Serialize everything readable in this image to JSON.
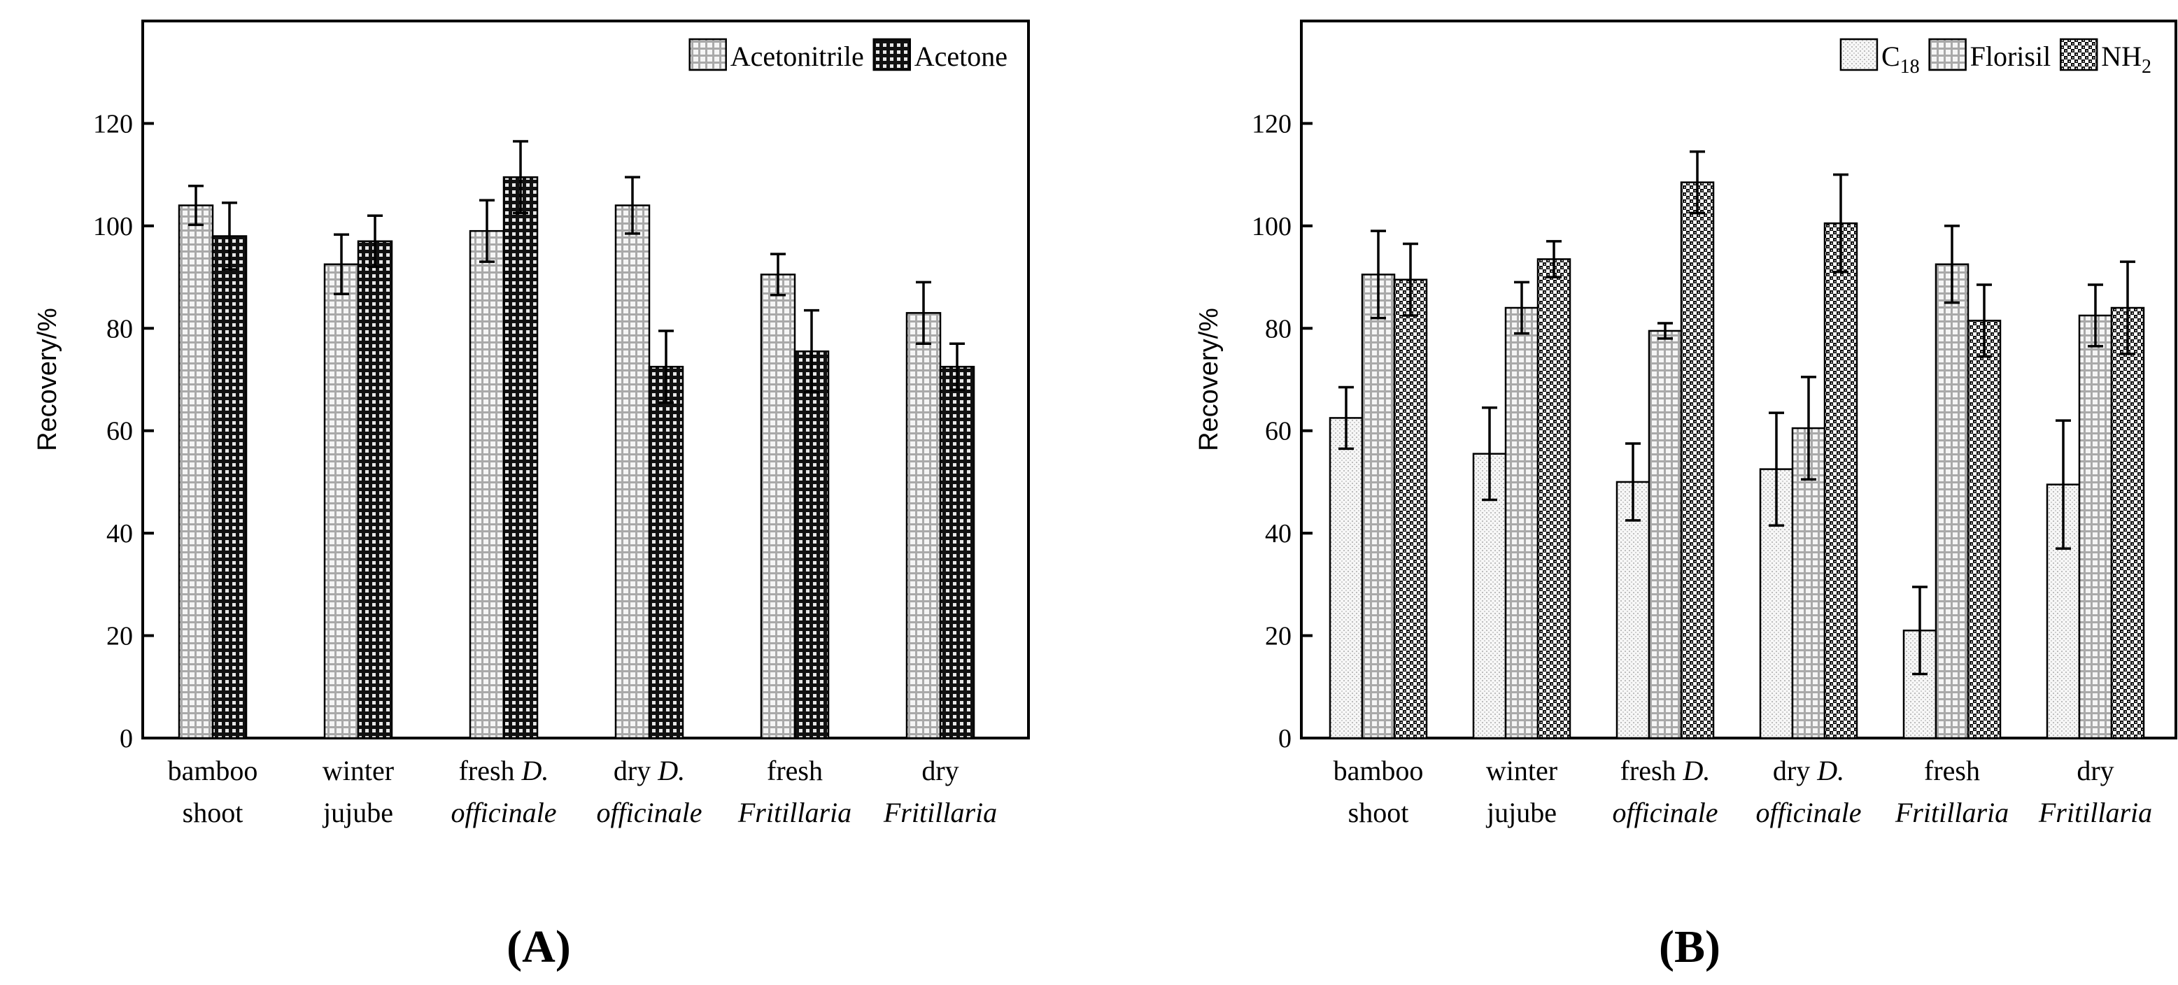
{
  "figure": {
    "panel_labels": [
      "A",
      "B"
    ]
  },
  "chart_data": [
    {
      "type": "bar",
      "panel": "A",
      "panel_label": "A",
      "xlabel": "",
      "ylabel": "Recovery/%",
      "ylim": [
        0,
        140
      ],
      "yticks": [
        0,
        20,
        40,
        60,
        80,
        100,
        120
      ],
      "grid": false,
      "legend_position": "top-right",
      "categories": [
        {
          "lines": [
            [
              {
                "text": "bamboo",
                "italic": false
              }
            ],
            [
              {
                "text": "shoot",
                "italic": false
              }
            ]
          ]
        },
        {
          "lines": [
            [
              {
                "text": "winter",
                "italic": false
              }
            ],
            [
              {
                "text": "jujube",
                "italic": false
              }
            ]
          ]
        },
        {
          "lines": [
            [
              {
                "text": "fresh  ",
                "italic": false
              },
              {
                "text": "D.",
                "italic": true
              }
            ],
            [
              {
                "text": "officinale",
                "italic": true
              }
            ]
          ]
        },
        {
          "lines": [
            [
              {
                "text": "dry ",
                "italic": false
              },
              {
                "text": "D.",
                "italic": true
              }
            ],
            [
              {
                "text": "officinale",
                "italic": true
              }
            ]
          ]
        },
        {
          "lines": [
            [
              {
                "text": "fresh",
                "italic": false
              }
            ],
            [
              {
                "text": "Fritillaria",
                "italic": true
              }
            ]
          ]
        },
        {
          "lines": [
            [
              {
                "text": "dry",
                "italic": false
              }
            ],
            [
              {
                "text": "Fritillaria",
                "italic": true
              }
            ]
          ]
        }
      ],
      "series": [
        {
          "name": "Acetonitrile",
          "legend_label": {
            "base": "Acetonitrile",
            "sub": ""
          },
          "pattern": "grid-light",
          "values": [
            104,
            92.5,
            99,
            104,
            90.5,
            83
          ],
          "errors": [
            3.8,
            5.8,
            6,
            5.5,
            4,
            6
          ]
        },
        {
          "name": "Acetone",
          "legend_label": {
            "base": "Acetone",
            "sub": ""
          },
          "pattern": "grid-dark",
          "values": [
            98,
            97,
            109.5,
            72.5,
            75.5,
            72.5
          ],
          "errors": [
            6.5,
            5,
            7,
            7,
            8,
            4.5
          ]
        }
      ]
    },
    {
      "type": "bar",
      "panel": "B",
      "panel_label": "B",
      "xlabel": "",
      "ylabel": "Recovery/%",
      "ylim": [
        0,
        140
      ],
      "yticks": [
        0,
        20,
        40,
        60,
        80,
        100,
        120
      ],
      "grid": false,
      "legend_position": "top-right",
      "categories": [
        {
          "lines": [
            [
              {
                "text": "bamboo",
                "italic": false
              }
            ],
            [
              {
                "text": "shoot",
                "italic": false
              }
            ]
          ]
        },
        {
          "lines": [
            [
              {
                "text": "winter",
                "italic": false
              }
            ],
            [
              {
                "text": "jujube",
                "italic": false
              }
            ]
          ]
        },
        {
          "lines": [
            [
              {
                "text": "fresh  ",
                "italic": false
              },
              {
                "text": "D.",
                "italic": true
              }
            ],
            [
              {
                "text": "officinale",
                "italic": true
              }
            ]
          ]
        },
        {
          "lines": [
            [
              {
                "text": "dry ",
                "italic": false
              },
              {
                "text": "D.",
                "italic": true
              }
            ],
            [
              {
                "text": "officinale",
                "italic": true
              }
            ]
          ]
        },
        {
          "lines": [
            [
              {
                "text": "fresh",
                "italic": false
              }
            ],
            [
              {
                "text": "Fritillaria",
                "italic": true
              }
            ]
          ]
        },
        {
          "lines": [
            [
              {
                "text": "dry",
                "italic": false
              }
            ],
            [
              {
                "text": "Fritillaria",
                "italic": true
              }
            ]
          ]
        }
      ],
      "series": [
        {
          "name": "C18",
          "legend_label": {
            "base": "C",
            "sub": "18"
          },
          "pattern": "dots-light",
          "values": [
            62.5,
            55.5,
            50,
            52.5,
            21,
            49.5
          ],
          "errors": [
            6,
            9,
            7.5,
            11,
            8.5,
            12.5
          ]
        },
        {
          "name": "Florisil",
          "legend_label": {
            "base": "Florisil",
            "sub": ""
          },
          "pattern": "grid-light",
          "values": [
            90.5,
            84,
            79.5,
            60.5,
            92.5,
            82.5
          ],
          "errors": [
            8.5,
            5,
            1.5,
            10,
            7.5,
            6
          ]
        },
        {
          "name": "NH2",
          "legend_label": {
            "base": "NH",
            "sub": "2"
          },
          "pattern": "checker-dark",
          "values": [
            89.5,
            93.5,
            108.5,
            100.5,
            81.5,
            84
          ],
          "errors": [
            7,
            3.5,
            6,
            9.5,
            7,
            9
          ]
        }
      ]
    }
  ]
}
